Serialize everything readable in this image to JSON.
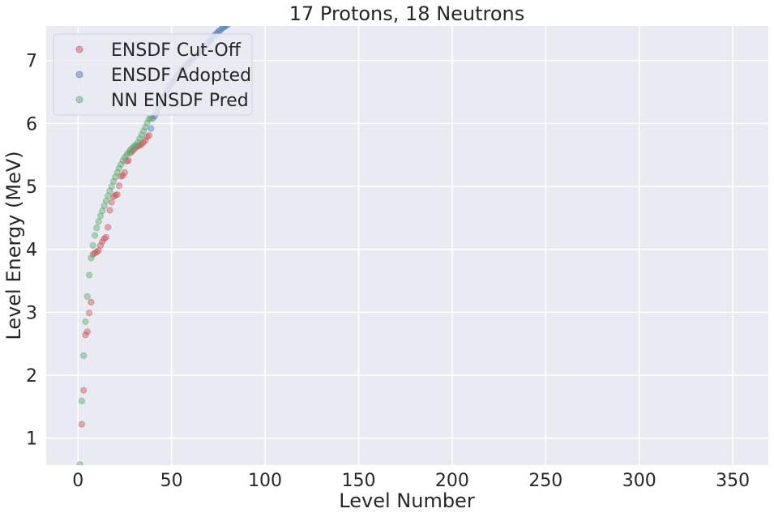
{
  "chart_data": {
    "type": "scatter",
    "title": "17 Protons, 18 Neutrons",
    "xlabel": "Level Number",
    "ylabel": "Level Energy (MeV)",
    "xlim": [
      -17,
      369
    ],
    "ylim": [
      0.57,
      7.55
    ],
    "xticks": [
      0,
      50,
      100,
      150,
      200,
      250,
      300,
      350
    ],
    "yticks": [
      1,
      2,
      3,
      4,
      5,
      6,
      7
    ],
    "grid": true,
    "legend_position": "top-left",
    "background": "#eaeaf2",
    "series": [
      {
        "name": "ENSDF Cut-Off",
        "color": "#c44e52",
        "x": [
          2,
          3,
          4,
          5,
          6,
          7,
          8,
          9,
          10,
          11,
          12,
          13,
          14,
          15,
          16,
          17,
          18,
          19,
          20,
          21,
          22,
          23,
          24,
          25,
          26,
          27,
          28,
          29,
          30,
          31,
          32,
          33,
          34,
          35,
          36,
          37,
          38
        ],
        "y": [
          1.22,
          1.76,
          2.64,
          2.69,
          2.99,
          3.16,
          3.92,
          3.94,
          3.96,
          3.98,
          4.06,
          4.12,
          4.17,
          4.19,
          4.35,
          4.62,
          4.75,
          4.84,
          4.86,
          4.87,
          5.01,
          5.16,
          5.17,
          5.22,
          5.4,
          5.41,
          5.53,
          5.56,
          5.59,
          5.62,
          5.64,
          5.65,
          5.67,
          5.7,
          5.73,
          5.79,
          5.81
        ]
      },
      {
        "name": "ENSDF Adopted",
        "color": "#4c72b0",
        "x": [
          39,
          40,
          41,
          42,
          43,
          44,
          45,
          46,
          47,
          48,
          49,
          50,
          51,
          52,
          53,
          54,
          55,
          56,
          57,
          58,
          59,
          60,
          61,
          62,
          63,
          64,
          65,
          66,
          67,
          68,
          69,
          70,
          71,
          72,
          73,
          74,
          75,
          76,
          77,
          78,
          79,
          80
        ],
        "y": [
          5.92,
          6.08,
          6.12,
          6.18,
          6.24,
          6.3,
          6.36,
          6.42,
          6.48,
          6.54,
          6.59,
          6.64,
          6.68,
          6.72,
          6.76,
          6.8,
          6.84,
          6.87,
          6.9,
          6.93,
          6.96,
          6.99,
          7.02,
          7.05,
          7.08,
          7.11,
          7.14,
          7.17,
          7.2,
          7.23,
          7.26,
          7.3,
          7.33,
          7.37,
          7.4,
          7.43,
          7.46,
          7.48,
          7.51,
          7.53,
          7.55,
          7.57
        ]
      },
      {
        "name": "NN ENSDF Pred",
        "color": "#55a868",
        "x": [
          1,
          2,
          3,
          4,
          5,
          6,
          7,
          8,
          9,
          10,
          11,
          12,
          13,
          14,
          15,
          16,
          17,
          18,
          19,
          20,
          21,
          22,
          23,
          24,
          25,
          26,
          27,
          28,
          29,
          30,
          31,
          32,
          33,
          34,
          35,
          36,
          37,
          38,
          39
        ],
        "y": [
          0.58,
          1.59,
          2.31,
          2.85,
          3.25,
          3.59,
          3.86,
          4.06,
          4.22,
          4.34,
          4.44,
          4.53,
          4.61,
          4.69,
          4.77,
          4.85,
          4.93,
          5.0,
          5.08,
          5.15,
          5.22,
          5.29,
          5.35,
          5.41,
          5.46,
          5.5,
          5.54,
          5.58,
          5.61,
          5.64,
          5.66,
          5.7,
          5.76,
          5.82,
          5.88,
          5.94,
          6.01,
          6.07,
          6.09
        ]
      }
    ]
  }
}
